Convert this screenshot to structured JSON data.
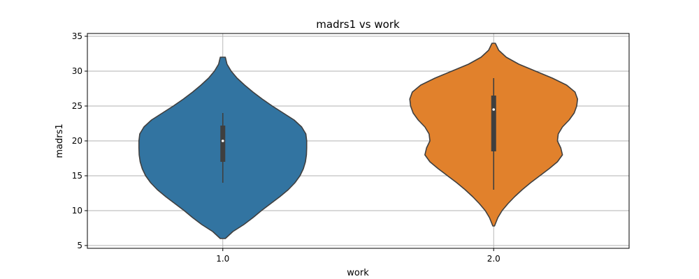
{
  "chart_data": {
    "type": "violin",
    "title": "madrs1 vs work",
    "xlabel": "work",
    "ylabel": "madrs1",
    "ylim": [
      4.6,
      35.4
    ],
    "yticks": [
      5,
      10,
      15,
      20,
      25,
      30,
      35
    ],
    "grid": true,
    "categories": [
      "1.0",
      "2.0"
    ],
    "series": [
      {
        "category": "1.0",
        "color": "#3274a1",
        "min": 6,
        "max": 32,
        "q1": 17,
        "median": 20,
        "q3": 22.2,
        "whisker_low": 14,
        "whisker_high": 24,
        "density": [
          [
            6,
            0.03
          ],
          [
            7,
            0.12
          ],
          [
            8,
            0.25
          ],
          [
            9,
            0.36
          ],
          [
            10,
            0.46
          ],
          [
            11,
            0.57
          ],
          [
            12,
            0.68
          ],
          [
            13,
            0.78
          ],
          [
            14,
            0.86
          ],
          [
            15,
            0.92
          ],
          [
            16,
            0.96
          ],
          [
            17,
            0.985
          ],
          [
            18,
            0.997
          ],
          [
            19,
            1.0
          ],
          [
            20,
            1.0
          ],
          [
            21,
            0.99
          ],
          [
            22,
            0.94
          ],
          [
            23,
            0.85
          ],
          [
            24,
            0.72
          ],
          [
            25,
            0.59
          ],
          [
            26,
            0.47
          ],
          [
            27,
            0.36
          ],
          [
            28,
            0.26
          ],
          [
            29,
            0.17
          ],
          [
            30,
            0.1
          ],
          [
            31,
            0.05
          ],
          [
            32,
            0.03
          ]
        ]
      },
      {
        "category": "2.0",
        "color": "#e1812c",
        "min": 7.8,
        "max": 34,
        "q1": 18.5,
        "median": 24.5,
        "q3": 26.5,
        "whisker_low": 13,
        "whisker_high": 29,
        "density": [
          [
            7.8,
            0.01
          ],
          [
            9,
            0.05
          ],
          [
            10,
            0.1
          ],
          [
            11,
            0.17
          ],
          [
            12,
            0.25
          ],
          [
            13,
            0.34
          ],
          [
            14,
            0.44
          ],
          [
            15,
            0.55
          ],
          [
            16,
            0.66
          ],
          [
            17,
            0.76
          ],
          [
            18,
            0.82
          ],
          [
            19,
            0.8
          ],
          [
            20,
            0.76
          ],
          [
            21,
            0.77
          ],
          [
            22,
            0.82
          ],
          [
            23,
            0.9
          ],
          [
            24,
            0.96
          ],
          [
            25,
            0.99
          ],
          [
            26,
            1.0
          ],
          [
            27,
            0.97
          ],
          [
            28,
            0.87
          ],
          [
            29,
            0.7
          ],
          [
            30,
            0.5
          ],
          [
            31,
            0.3
          ],
          [
            32,
            0.15
          ],
          [
            33,
            0.06
          ],
          [
            34,
            0.02
          ]
        ]
      }
    ]
  }
}
